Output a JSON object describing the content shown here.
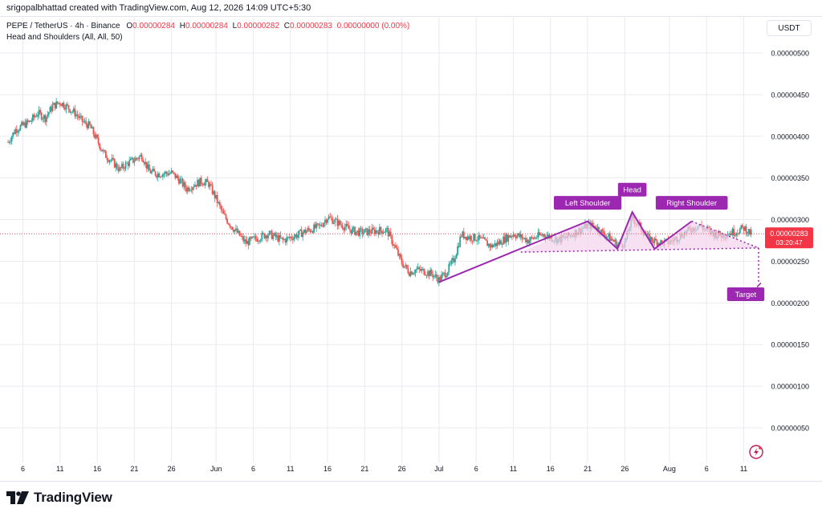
{
  "header": {
    "credit": "srigopalbhattad created with TradingView.com, Aug 12, 2026 14:09 UTC+5:30",
    "symbol": "PEPE / TetherUS · 4h · Binance",
    "ohlc": {
      "o_label": "O",
      "o_value": "0.00000284",
      "h_label": "H",
      "h_value": "0.00000284",
      "l_label": "L",
      "l_value": "0.00000282",
      "c_label": "C",
      "c_value": "0.00000283",
      "change": "0.00000000 (0.00%)"
    },
    "indicator": "Head and Shoulders (All, All, 50)",
    "currency": "USDT"
  },
  "brand": {
    "name": "TradingView"
  },
  "colors": {
    "up": "#26a69a",
    "down": "#ef5350",
    "pattern": "#9c27b0",
    "pattern_fill": "#f3d3ec",
    "last_price": "#f23645",
    "grid": "#e9ebf0"
  },
  "chart_data": {
    "type": "candlestick",
    "interval": "4h",
    "y_axis": {
      "range": [
        1e-08,
        5.5e-07
      ],
      "ticks": [
        5e-07,
        4.5e-07,
        4e-07,
        3.5e-07,
        3e-07,
        2.5e-07,
        2e-07,
        1.5e-07,
        1e-07,
        5e-08
      ],
      "tick_labels": [
        "0.00000500",
        "0.00000450",
        "0.00000400",
        "0.00000350",
        "0.00000300",
        "0.00000250",
        "0.00000200",
        "0.00000150",
        "0.00000100",
        "0.00000050"
      ]
    },
    "x_axis": {
      "start": "2026-05-04",
      "end": "2026-08-13",
      "tick_labels": [
        "6",
        "11",
        "16",
        "21",
        "26",
        "Jun",
        "6",
        "11",
        "16",
        "21",
        "26",
        "Jul",
        "6",
        "11",
        "16",
        "21",
        "26",
        "Aug",
        "6",
        "11"
      ],
      "tick_dates": [
        "2026-05-06",
        "2026-05-11",
        "2026-05-16",
        "2026-05-21",
        "2026-05-26",
        "2026-06-01",
        "2026-06-06",
        "2026-06-11",
        "2026-06-16",
        "2026-06-21",
        "2026-06-26",
        "2026-07-01",
        "2026-07-06",
        "2026-07-11",
        "2026-07-16",
        "2026-07-21",
        "2026-07-26",
        "2026-08-01",
        "2026-08-06",
        "2026-08-11"
      ]
    },
    "price_path": [
      [
        "2026-05-04",
        3.93e-07
      ],
      [
        "2026-05-05",
        4.08e-07
      ],
      [
        "2026-05-07",
        4.18e-07
      ],
      [
        "2026-05-08",
        4.28e-07
      ],
      [
        "2026-05-09",
        4.22e-07
      ],
      [
        "2026-05-10",
        4.36e-07
      ],
      [
        "2026-05-11",
        4.41e-07
      ],
      [
        "2026-05-12",
        4.35e-07
      ],
      [
        "2026-05-13",
        4.28e-07
      ],
      [
        "2026-05-14",
        4.18e-07
      ],
      [
        "2026-05-15",
        4.12e-07
      ],
      [
        "2026-05-16",
        3.95e-07
      ],
      [
        "2026-05-17",
        3.78e-07
      ],
      [
        "2026-05-18",
        3.7e-07
      ],
      [
        "2026-05-19",
        3.6e-07
      ],
      [
        "2026-05-20",
        3.67e-07
      ],
      [
        "2026-05-21",
        3.72e-07
      ],
      [
        "2026-05-22",
        3.77e-07
      ],
      [
        "2026-05-23",
        3.58e-07
      ],
      [
        "2026-05-24",
        3.55e-07
      ],
      [
        "2026-05-26",
        3.56e-07
      ],
      [
        "2026-05-27",
        3.48e-07
      ],
      [
        "2026-05-28",
        3.37e-07
      ],
      [
        "2026-05-29",
        3.42e-07
      ],
      [
        "2026-05-30",
        3.46e-07
      ],
      [
        "2026-05-31",
        3.43e-07
      ],
      [
        "2026-06-01",
        3.25e-07
      ],
      [
        "2026-06-02",
        3.05e-07
      ],
      [
        "2026-06-03",
        2.93e-07
      ],
      [
        "2026-06-05",
        2.72e-07
      ],
      [
        "2026-06-06",
        2.76e-07
      ],
      [
        "2026-06-08",
        2.83e-07
      ],
      [
        "2026-06-10",
        2.75e-07
      ],
      [
        "2026-06-12",
        2.82e-07
      ],
      [
        "2026-06-13",
        2.86e-07
      ],
      [
        "2026-06-14",
        2.89e-07
      ],
      [
        "2026-06-15",
        2.92e-07
      ],
      [
        "2026-06-16",
        3.03e-07
      ],
      [
        "2026-06-17",
        2.98e-07
      ],
      [
        "2026-06-18",
        2.93e-07
      ],
      [
        "2026-06-19",
        2.88e-07
      ],
      [
        "2026-06-20",
        2.85e-07
      ],
      [
        "2026-06-21",
        2.85e-07
      ],
      [
        "2026-06-23",
        2.87e-07
      ],
      [
        "2026-06-24",
        2.87e-07
      ],
      [
        "2026-06-25",
        2.68e-07
      ],
      [
        "2026-06-26",
        2.48e-07
      ],
      [
        "2026-06-27",
        2.37e-07
      ],
      [
        "2026-06-28",
        2.4e-07
      ],
      [
        "2026-06-29",
        2.38e-07
      ],
      [
        "2026-06-30",
        2.35e-07
      ],
      [
        "2026-07-01",
        2.28e-07
      ],
      [
        "2026-07-02",
        2.37e-07
      ],
      [
        "2026-07-03",
        2.52e-07
      ],
      [
        "2026-07-04",
        2.82e-07
      ],
      [
        "2026-07-05",
        2.79e-07
      ],
      [
        "2026-07-06",
        2.78e-07
      ],
      [
        "2026-07-07",
        2.74e-07
      ],
      [
        "2026-07-08",
        2.68e-07
      ],
      [
        "2026-07-09",
        2.72e-07
      ],
      [
        "2026-07-10",
        2.78e-07
      ],
      [
        "2026-07-11",
        2.83e-07
      ],
      [
        "2026-07-12",
        2.79e-07
      ],
      [
        "2026-07-13",
        2.75e-07
      ],
      [
        "2026-07-14",
        2.79e-07
      ],
      [
        "2026-07-15",
        2.82e-07
      ],
      [
        "2026-07-16",
        2.79e-07
      ],
      [
        "2026-07-17",
        2.76e-07
      ],
      [
        "2026-07-18",
        2.78e-07
      ],
      [
        "2026-07-19",
        2.83e-07
      ],
      [
        "2026-07-20",
        2.88e-07
      ],
      [
        "2026-07-21",
        2.93e-07
      ],
      [
        "2026-07-22",
        2.92e-07
      ],
      [
        "2026-07-23",
        2.84e-07
      ],
      [
        "2026-07-24",
        2.78e-07
      ],
      [
        "2026-07-25",
        2.7e-07
      ],
      [
        "2026-07-26",
        2.72e-07
      ],
      [
        "2026-07-27",
        3.02e-07
      ],
      [
        "2026-07-28",
        2.92e-07
      ],
      [
        "2026-07-29",
        2.79e-07
      ],
      [
        "2026-07-30",
        2.74e-07
      ],
      [
        "2026-07-31",
        2.72e-07
      ],
      [
        "2026-08-01",
        2.73e-07
      ],
      [
        "2026-08-02",
        2.78e-07
      ],
      [
        "2026-08-03",
        2.84e-07
      ],
      [
        "2026-08-04",
        2.89e-07
      ],
      [
        "2026-08-05",
        2.93e-07
      ],
      [
        "2026-08-06",
        2.87e-07
      ],
      [
        "2026-08-07",
        2.83e-07
      ],
      [
        "2026-08-08",
        2.81e-07
      ],
      [
        "2026-08-09",
        2.84e-07
      ],
      [
        "2026-08-10",
        2.86e-07
      ],
      [
        "2026-08-11",
        2.9e-07
      ],
      [
        "2026-08-12",
        2.83e-07
      ]
    ],
    "pattern": {
      "name": "Head and Shoulders",
      "labels": {
        "left_shoulder": "Left Shoulder",
        "head": "Head",
        "right_shoulder": "Right Shoulder",
        "target": "Target"
      },
      "points": [
        [
          "2026-07-01",
          2.25e-07
        ],
        [
          "2026-07-21",
          2.98e-07
        ],
        [
          "2026-07-25",
          2.65e-07
        ],
        [
          "2026-07-27",
          3.09e-07
        ],
        [
          "2026-07-30",
          2.65e-07
        ],
        [
          "2026-08-04",
          2.98e-07
        ],
        [
          "2026-08-13",
          2.66e-07
        ]
      ],
      "neckline": [
        [
          "2026-07-12",
          2.61e-07
        ],
        [
          "2026-08-13",
          2.66e-07
        ]
      ],
      "target_price": 2.23e-07
    },
    "last_price": {
      "value": "0.00000283",
      "numeric": 2.83e-07,
      "countdown": "03:20:47"
    }
  }
}
